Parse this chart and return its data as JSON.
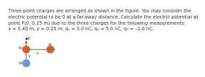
{
  "title_text": "Three point charges are arranged as shown in the figure. You may consider the\nelectric potential to be 0 at a far-away distance. Calculate the electric potential at\npoint P(0, 0.25 m) due to the three charges for the following measurements:\nx = 0.40 m, y = 0.25 m, q₁ = 3.0 nC, q₂ = 5.0 nC, q₃ = –2.0 nC.",
  "title_fontsize": 4.8,
  "bg_color": "#ffffff",
  "q1_color": "#d45f2a",
  "q2_color": "#d45f2a",
  "q3_color": "#6699cc",
  "axis_color": "#555555",
  "text_color": "#333333"
}
